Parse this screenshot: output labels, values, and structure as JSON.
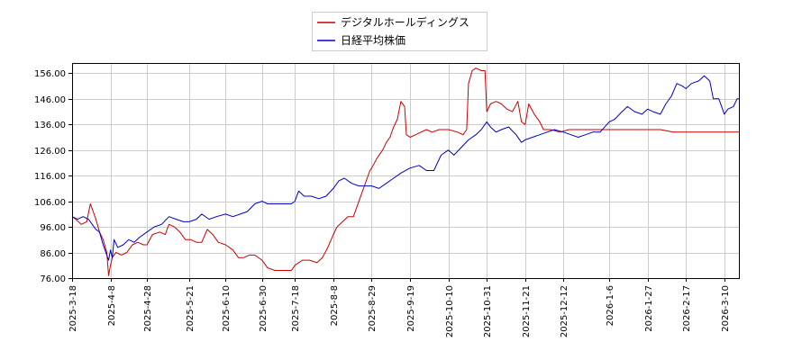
{
  "chart_data": {
    "type": "line",
    "title": "",
    "xlabel": "",
    "ylabel": "",
    "ylim": [
      76,
      160
    ],
    "xlim": [
      "2025-03-18",
      "2026-03-18"
    ],
    "grid": true,
    "legend_position": "top-center",
    "y_ticks": [
      "76.00",
      "86.00",
      "96.00",
      "106.00",
      "116.00",
      "126.00",
      "136.00",
      "146.00",
      "156.00"
    ],
    "x_ticks": [
      "2025-3-18",
      "2025-4-8",
      "2025-4-28",
      "2025-5-21",
      "2025-6-10",
      "2025-6-30",
      "2025-7-18",
      "2025-8-8",
      "2025-8-29",
      "2025-9-19",
      "2025-10-10",
      "2025-10-31",
      "2025-11-21",
      "2025-12-12",
      "2026-1-6",
      "2026-1-27",
      "2026-2-17",
      "2026-3-10"
    ],
    "series": [
      {
        "name": "デジタルホールディングス",
        "color": "#cc0000",
        "points": [
          [
            "2025-03-18",
            100
          ],
          [
            "2025-03-20",
            99
          ],
          [
            "2025-03-23",
            97
          ],
          [
            "2025-03-26",
            98
          ],
          [
            "2025-03-28",
            105
          ],
          [
            "2025-03-31",
            99
          ],
          [
            "2025-04-02",
            94
          ],
          [
            "2025-04-04",
            91
          ],
          [
            "2025-04-06",
            86
          ],
          [
            "2025-04-07",
            77
          ],
          [
            "2025-04-08",
            81
          ],
          [
            "2025-04-09",
            84
          ],
          [
            "2025-04-11",
            86
          ],
          [
            "2025-04-14",
            85
          ],
          [
            "2025-04-17",
            86
          ],
          [
            "2025-04-20",
            89
          ],
          [
            "2025-04-23",
            90
          ],
          [
            "2025-04-26",
            89
          ],
          [
            "2025-04-28",
            89
          ],
          [
            "2025-05-01",
            93
          ],
          [
            "2025-05-05",
            94
          ],
          [
            "2025-05-08",
            93
          ],
          [
            "2025-05-10",
            97
          ],
          [
            "2025-05-13",
            96
          ],
          [
            "2025-05-16",
            94
          ],
          [
            "2025-05-19",
            91
          ],
          [
            "2025-05-22",
            91
          ],
          [
            "2025-05-25",
            90
          ],
          [
            "2025-05-28",
            90
          ],
          [
            "2025-05-31",
            95
          ],
          [
            "2025-06-03",
            93
          ],
          [
            "2025-06-06",
            90
          ],
          [
            "2025-06-10",
            89
          ],
          [
            "2025-06-14",
            87
          ],
          [
            "2025-06-17",
            84
          ],
          [
            "2025-06-20",
            84
          ],
          [
            "2025-06-23",
            85
          ],
          [
            "2025-06-26",
            85
          ],
          [
            "2025-06-30",
            83
          ],
          [
            "2025-07-03",
            80
          ],
          [
            "2025-07-07",
            79
          ],
          [
            "2025-07-10",
            79
          ],
          [
            "2025-07-13",
            79
          ],
          [
            "2025-07-16",
            79
          ],
          [
            "2025-07-18",
            81
          ],
          [
            "2025-07-22",
            83
          ],
          [
            "2025-07-26",
            83
          ],
          [
            "2025-07-30",
            82
          ],
          [
            "2025-08-02",
            84
          ],
          [
            "2025-08-05",
            88
          ],
          [
            "2025-08-08",
            93
          ],
          [
            "2025-08-10",
            96
          ],
          [
            "2025-08-13",
            98
          ],
          [
            "2025-08-16",
            100
          ],
          [
            "2025-08-19",
            100
          ],
          [
            "2025-08-22",
            106
          ],
          [
            "2025-08-25",
            112
          ],
          [
            "2025-08-28",
            118
          ],
          [
            "2025-08-29",
            119
          ],
          [
            "2025-09-01",
            123
          ],
          [
            "2025-09-04",
            126
          ],
          [
            "2025-09-06",
            129
          ],
          [
            "2025-09-08",
            131
          ],
          [
            "2025-09-10",
            135
          ],
          [
            "2025-09-12",
            138
          ],
          [
            "2025-09-14",
            145
          ],
          [
            "2025-09-16",
            143
          ],
          [
            "2025-09-17",
            132
          ],
          [
            "2025-09-19",
            131
          ],
          [
            "2025-09-22",
            132
          ],
          [
            "2025-09-25",
            133
          ],
          [
            "2025-09-28",
            134
          ],
          [
            "2025-10-01",
            133
          ],
          [
            "2025-10-05",
            134
          ],
          [
            "2025-10-10",
            134
          ],
          [
            "2025-10-15",
            133
          ],
          [
            "2025-10-18",
            132
          ],
          [
            "2025-10-20",
            134
          ],
          [
            "2025-10-21",
            152
          ],
          [
            "2025-10-23",
            157
          ],
          [
            "2025-10-25",
            158
          ],
          [
            "2025-10-28",
            157
          ],
          [
            "2025-10-30",
            157
          ],
          [
            "2025-10-31",
            141
          ],
          [
            "2025-11-02",
            144
          ],
          [
            "2025-11-05",
            145
          ],
          [
            "2025-11-08",
            144
          ],
          [
            "2025-11-11",
            142
          ],
          [
            "2025-11-14",
            141
          ],
          [
            "2025-11-17",
            145
          ],
          [
            "2025-11-19",
            137
          ],
          [
            "2025-11-21",
            136
          ],
          [
            "2025-11-23",
            144
          ],
          [
            "2025-11-26",
            140
          ],
          [
            "2025-11-29",
            137
          ],
          [
            "2025-12-01",
            134
          ],
          [
            "2025-12-05",
            134
          ],
          [
            "2025-12-10",
            133
          ],
          [
            "2025-12-15",
            134
          ],
          [
            "2025-12-22",
            134
          ],
          [
            "2026-01-01",
            134
          ],
          [
            "2026-01-10",
            134
          ],
          [
            "2026-01-20",
            134
          ],
          [
            "2026-01-27",
            134
          ],
          [
            "2026-02-03",
            134
          ],
          [
            "2026-02-10",
            133
          ],
          [
            "2026-02-17",
            133
          ],
          [
            "2026-02-24",
            133
          ],
          [
            "2026-03-03",
            133
          ],
          [
            "2026-03-10",
            133
          ],
          [
            "2026-03-18",
            133
          ]
        ]
      },
      {
        "name": "日経平均株価",
        "color": "#0000cc",
        "points": [
          [
            "2025-03-18",
            100
          ],
          [
            "2025-03-21",
            99
          ],
          [
            "2025-03-24",
            100
          ],
          [
            "2025-03-27",
            99
          ],
          [
            "2025-03-31",
            95
          ],
          [
            "2025-04-02",
            94
          ],
          [
            "2025-04-04",
            89
          ],
          [
            "2025-04-06",
            85
          ],
          [
            "2025-04-07",
            83
          ],
          [
            "2025-04-08",
            87
          ],
          [
            "2025-04-09",
            84
          ],
          [
            "2025-04-10",
            91
          ],
          [
            "2025-04-12",
            88
          ],
          [
            "2025-04-15",
            89
          ],
          [
            "2025-04-18",
            91
          ],
          [
            "2025-04-21",
            90
          ],
          [
            "2025-04-24",
            92
          ],
          [
            "2025-04-28",
            94
          ],
          [
            "2025-05-02",
            96
          ],
          [
            "2025-05-06",
            97
          ],
          [
            "2025-05-10",
            100
          ],
          [
            "2025-05-14",
            99
          ],
          [
            "2025-05-18",
            98
          ],
          [
            "2025-05-21",
            98
          ],
          [
            "2025-05-25",
            99
          ],
          [
            "2025-05-28",
            101
          ],
          [
            "2025-06-01",
            99
          ],
          [
            "2025-06-05",
            100
          ],
          [
            "2025-06-10",
            101
          ],
          [
            "2025-06-14",
            100
          ],
          [
            "2025-06-18",
            101
          ],
          [
            "2025-06-22",
            102
          ],
          [
            "2025-06-26",
            105
          ],
          [
            "2025-06-30",
            106
          ],
          [
            "2025-07-03",
            105
          ],
          [
            "2025-07-08",
            105
          ],
          [
            "2025-07-12",
            105
          ],
          [
            "2025-07-16",
            105
          ],
          [
            "2025-07-18",
            106
          ],
          [
            "2025-07-20",
            110
          ],
          [
            "2025-07-23",
            108
          ],
          [
            "2025-07-27",
            108
          ],
          [
            "2025-07-31",
            107
          ],
          [
            "2025-08-04",
            108
          ],
          [
            "2025-08-08",
            111
          ],
          [
            "2025-08-11",
            114
          ],
          [
            "2025-08-14",
            115
          ],
          [
            "2025-08-18",
            113
          ],
          [
            "2025-08-22",
            112
          ],
          [
            "2025-08-26",
            112
          ],
          [
            "2025-08-29",
            112
          ],
          [
            "2025-09-02",
            111
          ],
          [
            "2025-09-06",
            113
          ],
          [
            "2025-09-10",
            115
          ],
          [
            "2025-09-14",
            117
          ],
          [
            "2025-09-19",
            119
          ],
          [
            "2025-09-24",
            120
          ],
          [
            "2025-09-28",
            118
          ],
          [
            "2025-10-02",
            118
          ],
          [
            "2025-10-06",
            124
          ],
          [
            "2025-10-10",
            126
          ],
          [
            "2025-10-13",
            124
          ],
          [
            "2025-10-17",
            127
          ],
          [
            "2025-10-21",
            130
          ],
          [
            "2025-10-25",
            132
          ],
          [
            "2025-10-28",
            134
          ],
          [
            "2025-10-31",
            137
          ],
          [
            "2025-11-02",
            135
          ],
          [
            "2025-11-05",
            133
          ],
          [
            "2025-11-08",
            134
          ],
          [
            "2025-11-12",
            135
          ],
          [
            "2025-11-16",
            132
          ],
          [
            "2025-11-19",
            129
          ],
          [
            "2025-11-21",
            130
          ],
          [
            "2025-11-25",
            131
          ],
          [
            "2025-11-29",
            132
          ],
          [
            "2025-12-03",
            133
          ],
          [
            "2025-12-07",
            134
          ],
          [
            "2025-12-12",
            133
          ],
          [
            "2025-12-16",
            132
          ],
          [
            "2025-12-20",
            131
          ],
          [
            "2025-12-24",
            132
          ],
          [
            "2025-12-28",
            133
          ],
          [
            "2026-01-01",
            133
          ],
          [
            "2026-01-06",
            137
          ],
          [
            "2026-01-09",
            138
          ],
          [
            "2026-01-13",
            141
          ],
          [
            "2026-01-16",
            143
          ],
          [
            "2026-01-20",
            141
          ],
          [
            "2026-01-24",
            140
          ],
          [
            "2026-01-27",
            142
          ],
          [
            "2026-01-30",
            141
          ],
          [
            "2026-02-03",
            140
          ],
          [
            "2026-02-06",
            144
          ],
          [
            "2026-02-09",
            147
          ],
          [
            "2026-02-12",
            152
          ],
          [
            "2026-02-15",
            151
          ],
          [
            "2026-02-17",
            150
          ],
          [
            "2026-02-20",
            152
          ],
          [
            "2026-02-24",
            153
          ],
          [
            "2026-02-27",
            155
          ],
          [
            "2026-03-02",
            153
          ],
          [
            "2026-03-04",
            146
          ],
          [
            "2026-03-07",
            146
          ],
          [
            "2026-03-09",
            142
          ],
          [
            "2026-03-10",
            140
          ],
          [
            "2026-03-12",
            142
          ],
          [
            "2026-03-15",
            143
          ],
          [
            "2026-03-17",
            146
          ],
          [
            "2026-03-18",
            146
          ]
        ]
      }
    ]
  }
}
